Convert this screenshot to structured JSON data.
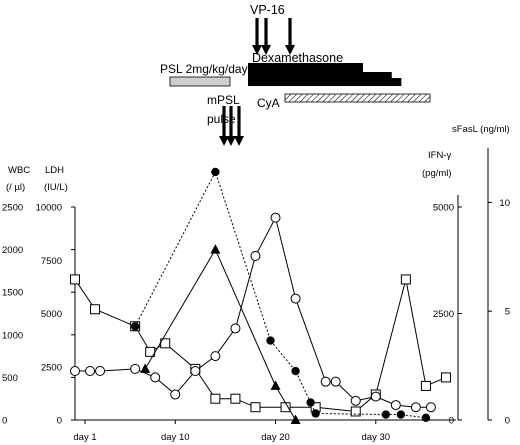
{
  "chart_data": {
    "type": "line",
    "title": "",
    "treatments": {
      "vp16": "VP-16",
      "dexamethasone": "Dexamethasone",
      "psl": "PSL 2mg/kg/day",
      "mpsl_line1": "mPSL",
      "mpsl_line2": "pulse",
      "cya": "CyA"
    },
    "vp16_days": [
      18,
      19,
      21
    ],
    "mpsl_days": [
      14,
      15,
      16
    ],
    "psl_range": [
      5,
      18
    ],
    "dexamethasone_steps": [
      [
        18,
        30
      ],
      [
        18,
        33
      ],
      [
        18,
        34
      ]
    ],
    "cya_range": [
      21,
      36
    ],
    "x_axis": {
      "range": [
        0,
        38
      ],
      "ticks": [
        {
          "value": 1,
          "label": "day 1"
        },
        {
          "value": 10,
          "label": "day 10"
        },
        {
          "value": 20,
          "label": "day 20"
        },
        {
          "value": 30,
          "label": "day 30"
        }
      ]
    },
    "y_axes": {
      "wbc": {
        "label_line1": "WBC",
        "label_line2": "(/ µl)",
        "range": [
          0,
          2500
        ],
        "ticks": [
          "0",
          "500",
          "1000",
          "1500",
          "2000",
          "2500"
        ]
      },
      "ldh": {
        "label_line1": "LDH",
        "label_line2": "(IU/L)",
        "range": [
          0,
          10000
        ],
        "ticks": [
          "0",
          "2500",
          "5000",
          "7500",
          "10000"
        ]
      },
      "ifn": {
        "label_line1": "IFN-γ",
        "label_line2": "(pg/ml)",
        "range": [
          0,
          5000
        ],
        "ticks": [
          "0",
          "2500",
          "5000"
        ]
      },
      "sfasl": {
        "label": "sFasL  (ng/ml)",
        "range": [
          0,
          12.5
        ],
        "ticks": [
          "0",
          "5",
          "10"
        ]
      }
    },
    "series": [
      {
        "marker": "square",
        "axis": "wbc",
        "points": [
          [
            0,
            1650
          ],
          [
            2,
            1300
          ],
          [
            6,
            1100
          ],
          [
            7.5,
            800
          ],
          [
            9,
            900
          ],
          [
            12,
            600
          ],
          [
            14,
            250
          ],
          [
            16,
            250
          ],
          [
            18,
            150
          ],
          [
            21,
            150
          ],
          [
            24,
            150
          ],
          [
            28,
            100
          ],
          [
            30,
            300
          ],
          [
            33,
            1650
          ],
          [
            35,
            400
          ],
          [
            37,
            500
          ]
        ]
      },
      {
        "marker": "circle",
        "axis": "ldh",
        "points": [
          [
            0,
            2300
          ],
          [
            1.5,
            2300
          ],
          [
            2.5,
            2300
          ],
          [
            6,
            2400
          ],
          [
            8,
            2000
          ],
          [
            10,
            1200
          ],
          [
            12,
            2300
          ],
          [
            14,
            3000
          ],
          [
            16,
            4300
          ],
          [
            18,
            7700
          ],
          [
            20,
            9500
          ],
          [
            22,
            5700
          ],
          [
            25,
            1800
          ],
          [
            26,
            1800
          ],
          [
            28,
            900
          ],
          [
            30,
            1100
          ],
          [
            32,
            700
          ],
          [
            34,
            600
          ],
          [
            35.5,
            600
          ]
        ]
      },
      {
        "marker": "triangle",
        "axis": "ifn",
        "points": [
          [
            7,
            1200
          ],
          [
            14,
            4000
          ],
          [
            20,
            800
          ],
          [
            22,
            0
          ]
        ]
      },
      {
        "marker": "filled-circle",
        "axis": "sfasl",
        "connect": "dotted",
        "points": [
          [
            6,
            4.3
          ],
          [
            14,
            11.4
          ],
          [
            19.5,
            3.65
          ],
          [
            22,
            2.25
          ],
          [
            23.5,
            0.8
          ],
          [
            24,
            0.3
          ],
          [
            31,
            0.25
          ],
          [
            32.5,
            0.25
          ],
          [
            35,
            0.1
          ]
        ]
      }
    ]
  }
}
